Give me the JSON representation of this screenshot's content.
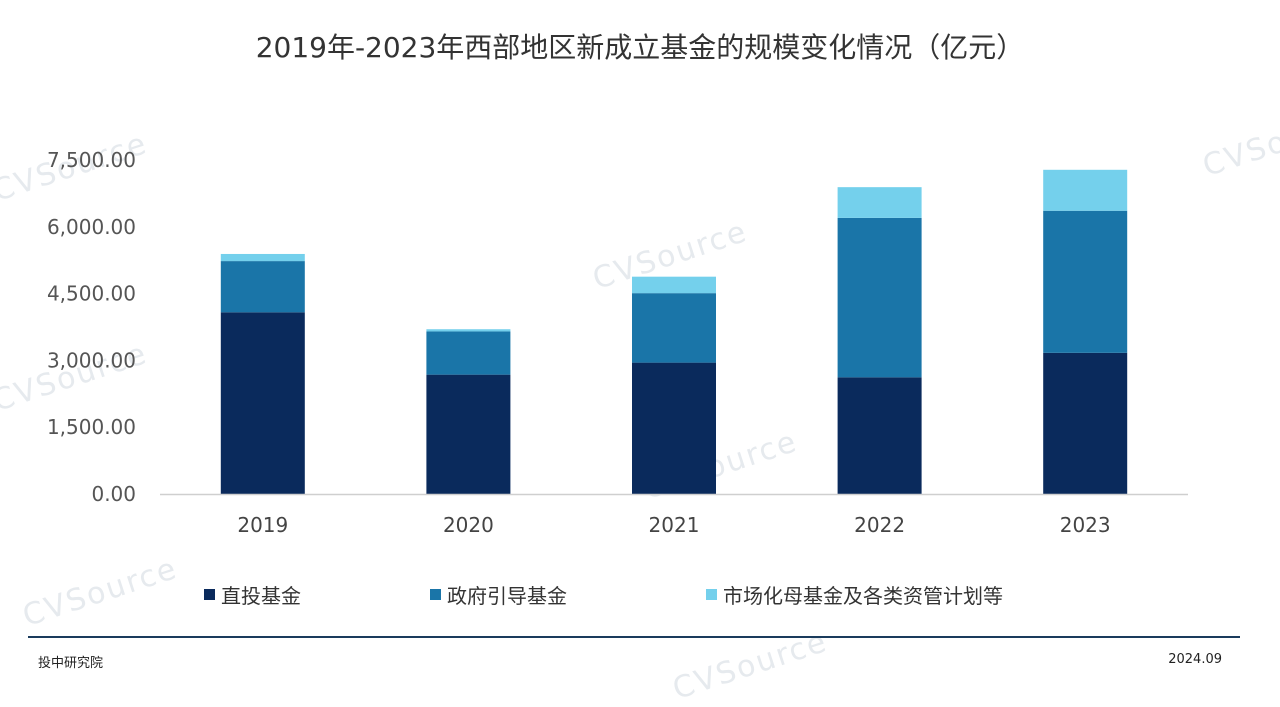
{
  "title": "2019年-2023年西部地区新成立基金的规模变化情况（亿元）",
  "chart_data": {
    "type": "bar",
    "stacked": true,
    "categories": [
      "2019",
      "2020",
      "2021",
      "2022",
      "2023"
    ],
    "ylim": [
      0,
      7500
    ],
    "yticks": [
      "0.00",
      "1,500.00",
      "3,000.00",
      "4,500.00",
      "6,000.00",
      "7,500.00"
    ],
    "ytick_values": [
      0,
      1500,
      3000,
      4500,
      6000,
      7500
    ],
    "series": [
      {
        "name": "直投基金",
        "color": "#0a2a5c",
        "values": [
          4080,
          2680,
          2950,
          2620,
          3170
        ]
      },
      {
        "name": "政府引导基金",
        "color": "#1a75a8",
        "values": [
          1150,
          970,
          1560,
          3580,
          3190
        ]
      },
      {
        "name": "市场化母基金及各类资管计划等",
        "color": "#74d0ec",
        "values": [
          160,
          50,
          370,
          690,
          920
        ]
      }
    ],
    "legend_position": "bottom",
    "grid": false
  },
  "footer": {
    "source": "投中研究院",
    "date": "2024.09"
  },
  "watermark": "CVSource"
}
